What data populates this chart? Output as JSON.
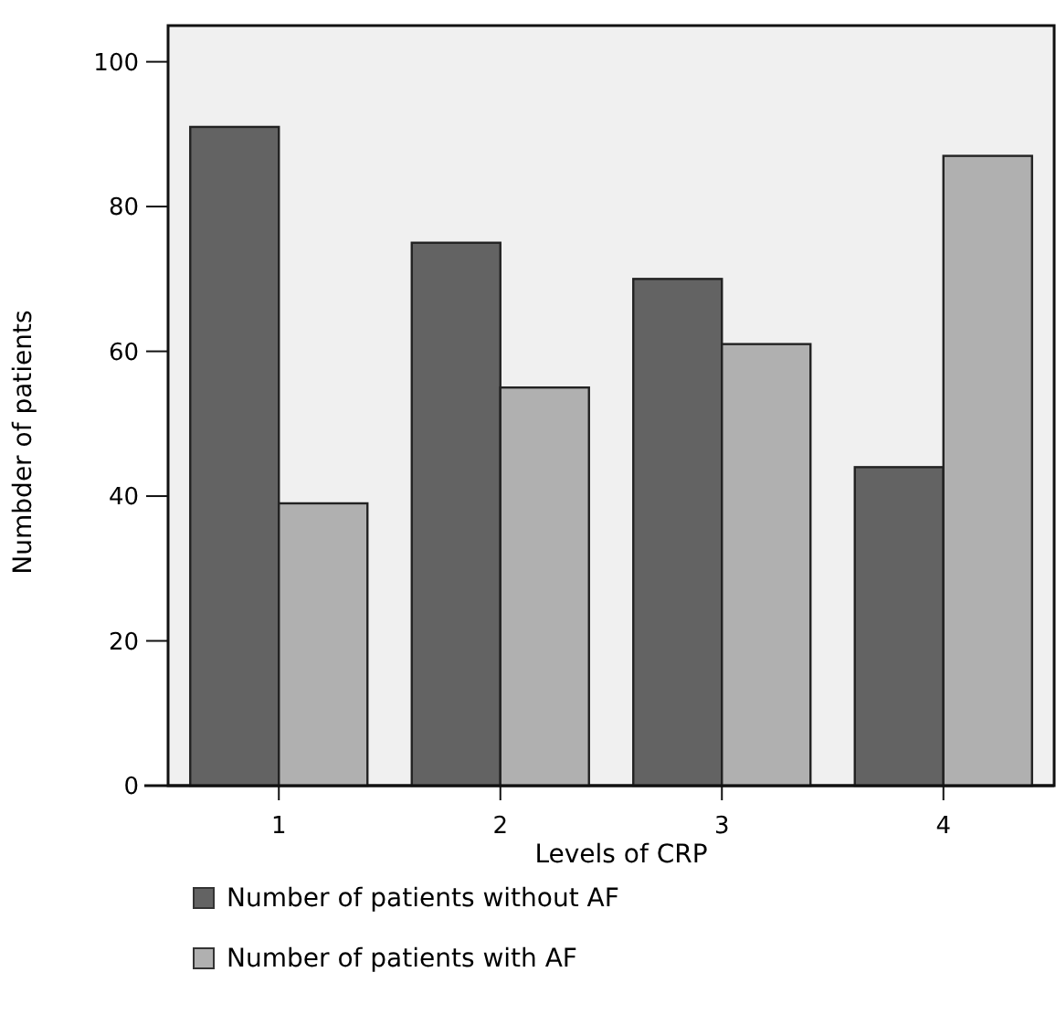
{
  "chart_data": {
    "type": "bar",
    "categories": [
      "1",
      "2",
      "3",
      "4"
    ],
    "xlabel": "Levels of CRP",
    "ylabel": "Numbder of patients",
    "series": [
      {
        "name": "Number of patients without AF",
        "color": "#636363",
        "values": [
          91,
          75,
          70,
          44
        ]
      },
      {
        "name": "Number of patients with AF",
        "color": "#b0b0b0",
        "values": [
          39,
          55,
          61,
          87
        ]
      }
    ],
    "ylim": [
      0,
      105
    ],
    "yticks": [
      0,
      20,
      40,
      60,
      80,
      100
    ],
    "grid": false,
    "legend": "bottom"
  }
}
